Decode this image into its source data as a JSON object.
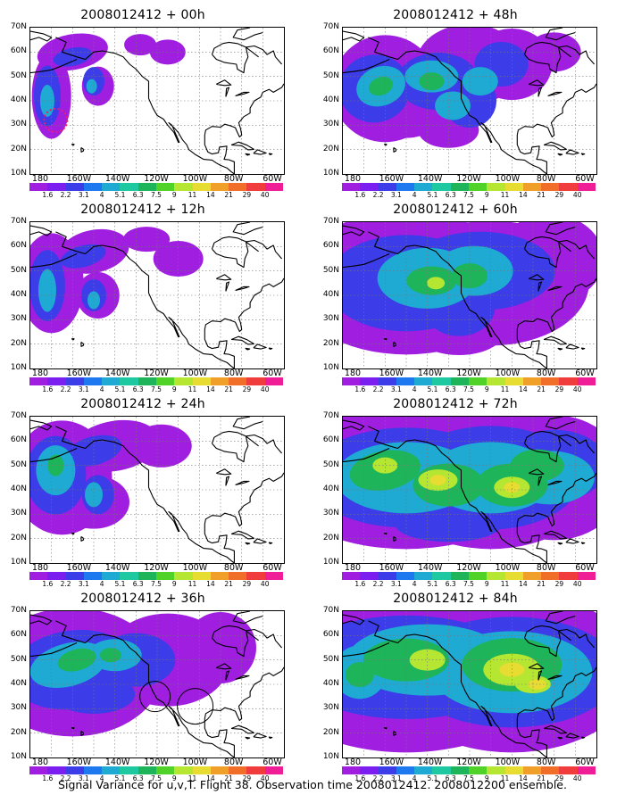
{
  "panels": [
    {
      "title": "2008012412 + 00h",
      "level": 0.12
    },
    {
      "title": "2008012412 + 48h",
      "level": 0.55
    },
    {
      "title": "2008012412 + 12h",
      "level": 0.28
    },
    {
      "title": "2008012412 + 60h",
      "level": 0.65
    },
    {
      "title": "2008012412 + 24h",
      "level": 0.4
    },
    {
      "title": "2008012412 + 72h",
      "level": 0.78
    },
    {
      "title": "2008012412 + 36h",
      "level": 0.48
    },
    {
      "title": "2008012412 + 84h",
      "level": 0.88
    }
  ],
  "y_ticks": [
    "70N",
    "60N",
    "50N",
    "40N",
    "30N",
    "20N",
    "10N"
  ],
  "x_ticks": [
    "180",
    "160W",
    "140W",
    "120W",
    "100W",
    "80W",
    "60W"
  ],
  "colorbar": {
    "labels": [
      "1.6",
      "2.2",
      "3.1",
      "4",
      "5.1",
      "6.3",
      "7.5",
      "9",
      "11",
      "14",
      "21",
      "29",
      "40"
    ],
    "colors": [
      "#a01ee0",
      "#7a1ff0",
      "#3c3ce8",
      "#1e78f0",
      "#1eaad2",
      "#1ec8a0",
      "#1eb45a",
      "#50d228",
      "#b4e632",
      "#e6dc32",
      "#f0a028",
      "#f06e28",
      "#f03c3c",
      "#f01e96"
    ]
  },
  "caption": "Signal Variance for u,v,T. Flight 38. Observation time 2008012412. 2008012200 ensemble."
}
